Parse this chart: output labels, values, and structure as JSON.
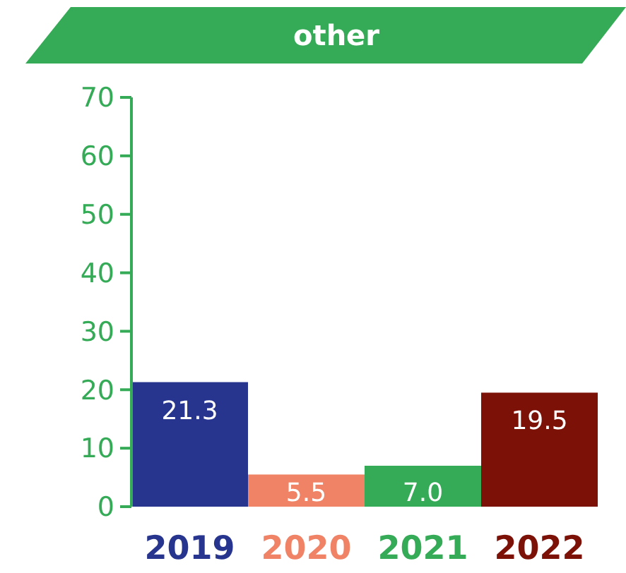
{
  "chart_data": {
    "type": "bar",
    "title": "other",
    "categories": [
      "2019",
      "2020",
      "2021",
      "2022"
    ],
    "values": [
      21.3,
      5.5,
      7.0,
      19.5
    ],
    "value_labels": [
      "21.3",
      "5.5",
      "7.0",
      "19.5"
    ],
    "colors": [
      "#27358f",
      "#f08366",
      "#36ab57",
      "#7c1108"
    ],
    "ylim": [
      0,
      70
    ],
    "yticks": [
      0,
      10,
      20,
      30,
      40,
      50,
      60,
      70
    ],
    "grid": false
  }
}
